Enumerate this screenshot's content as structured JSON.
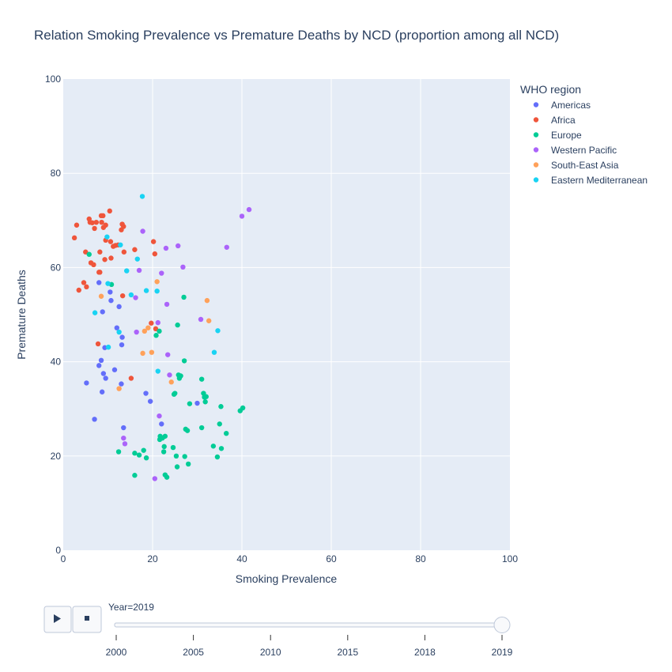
{
  "chart_data": {
    "type": "scatter",
    "title": "Relation Smoking Prevalence vs Premature Deaths by NCD (proportion among all NCD)",
    "xlabel": "Smoking Prevalence",
    "ylabel": "Premature Deaths",
    "xlim": [
      0,
      100
    ],
    "ylim": [
      0,
      100
    ],
    "xticks": [
      "0",
      "20",
      "40",
      "60",
      "80",
      "100"
    ],
    "yticks": [
      "0",
      "20",
      "40",
      "60",
      "80",
      "100"
    ],
    "grid": true,
    "legend": {
      "title": "WHO region",
      "position": "right"
    },
    "series": [
      {
        "name": "Americas",
        "color": "#636efa",
        "points": [
          [
            5.2,
            35.5
          ],
          [
            7,
            27.8
          ],
          [
            8,
            56.8
          ],
          [
            8,
            39.2
          ],
          [
            8.5,
            40.3
          ],
          [
            8.7,
            33.6
          ],
          [
            8.8,
            50.6
          ],
          [
            9,
            37.5
          ],
          [
            9.5,
            36.5
          ],
          [
            10.5,
            54.8
          ],
          [
            10.7,
            53
          ],
          [
            11.5,
            38.3
          ],
          [
            12,
            47.2
          ],
          [
            12.5,
            51.7
          ],
          [
            13,
            35.3
          ],
          [
            13.1,
            43.6
          ],
          [
            13.2,
            45.2
          ],
          [
            13.5,
            26
          ],
          [
            18.5,
            33.3
          ],
          [
            19.5,
            31.6
          ],
          [
            22,
            26.8
          ],
          [
            30,
            31.2
          ],
          [
            9.3,
            43
          ]
        ]
      },
      {
        "name": "Africa",
        "color": "#EF553B",
        "points": [
          [
            2.5,
            66.3
          ],
          [
            3,
            69
          ],
          [
            3.5,
            55.2
          ],
          [
            4.6,
            56.8
          ],
          [
            5,
            63.3
          ],
          [
            5.2,
            55.9
          ],
          [
            5.8,
            70.3
          ],
          [
            6,
            69.6
          ],
          [
            6.2,
            61
          ],
          [
            6.5,
            69.5
          ],
          [
            6.8,
            60.6
          ],
          [
            7,
            68.3
          ],
          [
            7.4,
            69.6
          ],
          [
            8,
            59
          ],
          [
            8.2,
            63.3
          ],
          [
            8.5,
            71
          ],
          [
            8.6,
            69.6
          ],
          [
            8.9,
            71
          ],
          [
            9,
            68.5
          ],
          [
            9.3,
            61.7
          ],
          [
            9.5,
            69
          ],
          [
            9.5,
            65.8
          ],
          [
            10.4,
            72
          ],
          [
            10.6,
            65.5
          ],
          [
            10.7,
            62
          ],
          [
            11.2,
            64.5
          ],
          [
            11.7,
            64.7
          ],
          [
            12.3,
            64.8
          ],
          [
            13,
            68
          ],
          [
            13.2,
            69.2
          ],
          [
            13.5,
            68.7
          ],
          [
            13.6,
            63.3
          ],
          [
            15.2,
            36.5
          ],
          [
            16,
            63.8
          ],
          [
            19.7,
            48.2
          ],
          [
            20.2,
            65.5
          ],
          [
            20.5,
            62.9
          ],
          [
            20.7,
            47
          ],
          [
            7.8,
            43.8
          ],
          [
            13.3,
            54
          ],
          [
            8.2,
            59
          ]
        ]
      },
      {
        "name": "Europe",
        "color": "#00cc96",
        "points": [
          [
            5.8,
            62.8
          ],
          [
            10.8,
            56.4
          ],
          [
            12.4,
            20.9
          ],
          [
            16,
            15.9
          ],
          [
            16,
            20.6
          ],
          [
            17,
            20.2
          ],
          [
            18,
            21.2
          ],
          [
            18.6,
            19.6
          ],
          [
            20.8,
            45.6
          ],
          [
            21.5,
            46.5
          ],
          [
            21.6,
            23.5
          ],
          [
            21.7,
            24.2
          ],
          [
            22.2,
            23.8
          ],
          [
            22.5,
            20.9
          ],
          [
            22.6,
            22
          ],
          [
            22.8,
            24.2
          ],
          [
            22.8,
            16
          ],
          [
            23.2,
            15.5
          ],
          [
            24.6,
            21.8
          ],
          [
            24.8,
            33.1
          ],
          [
            25,
            33.3
          ],
          [
            25.3,
            20
          ],
          [
            25.5,
            17.7
          ],
          [
            25.6,
            47.8
          ],
          [
            25.8,
            37.2
          ],
          [
            26,
            36.5
          ],
          [
            26.3,
            37
          ],
          [
            27,
            53.7
          ],
          [
            27.1,
            40.2
          ],
          [
            27.2,
            19.9
          ],
          [
            27.4,
            25.7
          ],
          [
            27.8,
            25.4
          ],
          [
            28,
            18.3
          ],
          [
            28.3,
            31.1
          ],
          [
            31,
            36.3
          ],
          [
            31,
            26
          ],
          [
            31.4,
            33.3
          ],
          [
            31.6,
            32.5
          ],
          [
            31.8,
            31.5
          ],
          [
            32,
            32.6
          ],
          [
            33.6,
            22.1
          ],
          [
            34.5,
            19.8
          ],
          [
            35,
            26.8
          ],
          [
            35.3,
            30.5
          ],
          [
            35.4,
            21.6
          ],
          [
            36.5,
            24.8
          ],
          [
            39.6,
            29.6
          ],
          [
            40.2,
            30.2
          ]
        ]
      },
      {
        "name": "Western Pacific",
        "color": "#ab63fa",
        "points": [
          [
            13.5,
            23.8
          ],
          [
            13.8,
            22.6
          ],
          [
            16.2,
            53.6
          ],
          [
            16.4,
            46.3
          ],
          [
            17,
            59.4
          ],
          [
            17.8,
            67.7
          ],
          [
            20.5,
            15.2
          ],
          [
            21.2,
            48.3
          ],
          [
            21.5,
            28.5
          ],
          [
            22,
            58.8
          ],
          [
            23,
            64.1
          ],
          [
            23.2,
            52.2
          ],
          [
            23.4,
            41.5
          ],
          [
            23.8,
            37.2
          ],
          [
            25.7,
            64.6
          ],
          [
            26.8,
            60.1
          ],
          [
            30.8,
            49
          ],
          [
            36.6,
            64.3
          ],
          [
            40,
            70.9
          ],
          [
            41.6,
            72.3
          ]
        ]
      },
      {
        "name": "South-East Asia",
        "color": "#FFA15A",
        "points": [
          [
            8.5,
            53.9
          ],
          [
            12.5,
            34.3
          ],
          [
            17.8,
            41.8
          ],
          [
            18.2,
            46.5
          ],
          [
            19,
            47.2
          ],
          [
            19.8,
            42
          ],
          [
            21,
            57
          ],
          [
            24.2,
            35.7
          ],
          [
            32.2,
            53
          ],
          [
            32.6,
            48.7
          ]
        ]
      },
      {
        "name": "Eastern Mediterranean",
        "color": "#19d3f3",
        "points": [
          [
            7.1,
            50.4
          ],
          [
            9.8,
            66.5
          ],
          [
            10.1,
            43.1
          ],
          [
            10,
            56.6
          ],
          [
            12.5,
            46.3
          ],
          [
            12.8,
            64.8
          ],
          [
            14.2,
            59.3
          ],
          [
            15.2,
            54.2
          ],
          [
            16.6,
            61.8
          ],
          [
            17.7,
            75.1
          ],
          [
            18.6,
            55.1
          ],
          [
            21,
            55
          ],
          [
            21.2,
            38
          ],
          [
            33.8,
            42
          ],
          [
            34.6,
            46.6
          ]
        ]
      }
    ]
  },
  "animation": {
    "current_label": "Year=2019",
    "steps": [
      "2000",
      "2005",
      "2010",
      "2015",
      "2018",
      "2019"
    ],
    "selected_index": 5,
    "play_icon": "play-icon",
    "stop_icon": "stop-icon"
  }
}
